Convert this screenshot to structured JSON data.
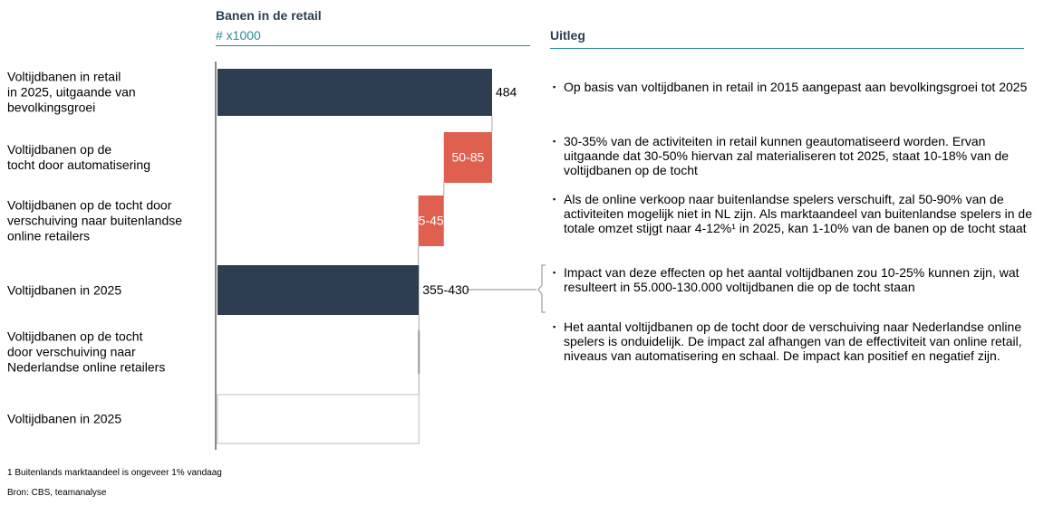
{
  "header": {
    "chart_title": "Banen in de retail",
    "unit": "# x1000",
    "explanation_title": "Uitleg"
  },
  "chart_data": {
    "type": "waterfall",
    "categories": [
      "Voltijdbanen in retail\nin 2025, uitgaande van\nbevolkingsgroei",
      "Voltijdbanen op de\ntocht door automatisering",
      "Voltijdbanen op de tocht door\nverschuiving naar buitenlandse\nonline retailers",
      "Voltijdbanen in 2025",
      "Voltijdbanen op de tocht\ndoor verschuiving naar\nNederlandse online retailers",
      "Voltijdbanen in 2025"
    ],
    "values": [
      484,
      [
        50,
        85
      ],
      [
        5,
        45
      ],
      [
        355,
        430
      ],
      null,
      null
    ],
    "value_labels": [
      "484",
      "50-85",
      "5-45",
      "355-430",
      null,
      null
    ],
    "kinds": [
      "total",
      "decrease",
      "decrease",
      "total",
      "decrease",
      "total"
    ],
    "colors": {
      "total": "#2c3e50",
      "decrease": "#e0604f"
    }
  },
  "bullets": [
    "Op basis van voltijdbanen in retail in 2015 aangepast aan bevolkingsgroei tot 2025",
    "30-35% van de activiteiten in retail kunnen geautomatiseerd worden. Ervan uitgaande dat 30-50% hiervan zal materialiseren tot 2025, staat 10-18% van de voltijdbanen op de tocht",
    "Als de online verkoop naar buitenlandse spelers verschuift, zal 50-90% van de activiteiten mogelijk niet in NL zijn. Als marktaandeel van buitenlandse spelers in de totale omzet stijgt naar 4-12%¹ in 2025, kan 1-10% van de banen op de tocht staat",
    "Impact van deze effecten op het aantal voltijdbanen zou 10-25% kunnen zijn, wat resulteert in 55.000-130.000 voltijdbanen die op de tocht staan",
    "Het aantal voltijdbanen op de tocht door de verschuiving naar Nederlandse online spelers is onduidelijk. De impact zal afhangen van de effectiviteit van online retail, niveaus van automatisering en schaal. De impact kan positief en negatief zijn."
  ],
  "footnotes": [
    "1 Buitenlands marktaandeel is ongeveer 1% vandaag",
    "Bron: CBS, teamanalyse"
  ]
}
